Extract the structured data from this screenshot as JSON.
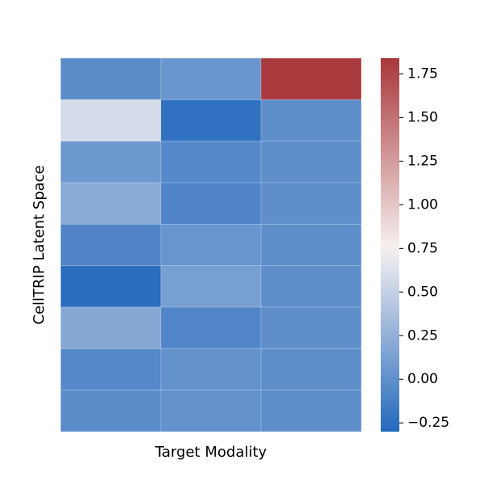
{
  "chart_data": {
    "type": "heatmap",
    "title": "",
    "xlabel": "Target Modality",
    "ylabel": "CellTRIP Latent Space",
    "x_tick_labels": [],
    "y_tick_labels": [],
    "rows": 9,
    "cols": 3,
    "values": [
      [
        -0.03,
        0.05,
        1.82
      ],
      [
        0.58,
        -0.24,
        -0.01
      ],
      [
        0.07,
        -0.05,
        -0.01
      ],
      [
        0.21,
        -0.08,
        -0.01
      ],
      [
        -0.08,
        0.04,
        -0.01
      ],
      [
        -0.26,
        0.12,
        -0.01
      ],
      [
        0.19,
        -0.07,
        -0.01
      ],
      [
        -0.05,
        0.01,
        -0.01
      ],
      [
        -0.02,
        0.01,
        -0.01
      ]
    ],
    "colorbar": {
      "min": -0.3,
      "max": 1.84,
      "center": 0.75,
      "ticks": [
        -0.25,
        0.0,
        0.25,
        0.5,
        0.75,
        1.0,
        1.25,
        1.5,
        1.75
      ],
      "tick_labels": [
        "−0.25",
        "0.00",
        "0.25",
        "0.50",
        "0.75",
        "1.00",
        "1.25",
        "1.50",
        "1.75"
      ],
      "colormap": "vlag",
      "low_color": "#2369bd",
      "mid_color": "#f7f1f1",
      "high_color": "#a9373b"
    },
    "grid": false,
    "cell_borders": "#ffffff"
  }
}
